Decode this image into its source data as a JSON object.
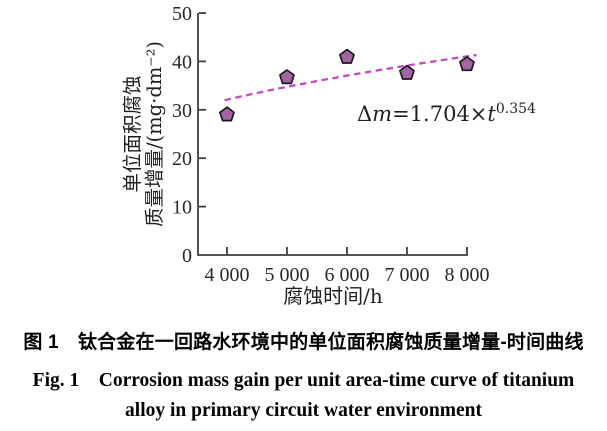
{
  "figure": {
    "caption_zh": "图 1　钛合金在一回路水环境中的单位面积腐蚀质量增量-时间曲线",
    "caption_en_line1": "Fig. 1　Corrosion mass gain per unit area-time curve of titanium",
    "caption_en_line2": "alloy in primary circuit water environment"
  },
  "chart_data": {
    "type": "scatter",
    "title": "",
    "xlabel": "腐蚀时间/h",
    "ylabel_lines": [
      "单位面积腐蚀",
      "质量增量/(mg·dm⁻²)"
    ],
    "x": [
      4000,
      5000,
      6000,
      7000,
      8000
    ],
    "y": [
      29.0,
      36.7,
      40.9,
      37.6,
      39.4
    ],
    "xtick_labels": [
      "4 000",
      "5 000",
      "6 000",
      "7 000",
      "8 000"
    ],
    "ytick_values": [
      0,
      10,
      20,
      30,
      40,
      50
    ],
    "xlim": [
      3517,
      8017
    ],
    "ylim": [
      0,
      50
    ],
    "grid": false,
    "legend": false,
    "marker": "pentagon",
    "marker_color": "#a763a7",
    "marker_edge_color": "#1a1a1a",
    "axis_color": "#3d3d3d",
    "fit": {
      "equation_plain": "Δm=1.704×t^0.354",
      "label_parts": [
        {
          "text": "Δ",
          "italic": false,
          "sup": false
        },
        {
          "text": "m",
          "italic": true,
          "sup": false
        },
        {
          "text": "=1.704×",
          "italic": false,
          "sup": false
        },
        {
          "text": "t",
          "italic": true,
          "sup": false
        },
        {
          "text": "0.354",
          "italic": false,
          "sup": true
        }
      ],
      "coefficient": 1.704,
      "exponent": 0.354,
      "t_range": [
        3960,
        8190
      ],
      "color": "#c14ac1",
      "style": "dashed"
    }
  }
}
